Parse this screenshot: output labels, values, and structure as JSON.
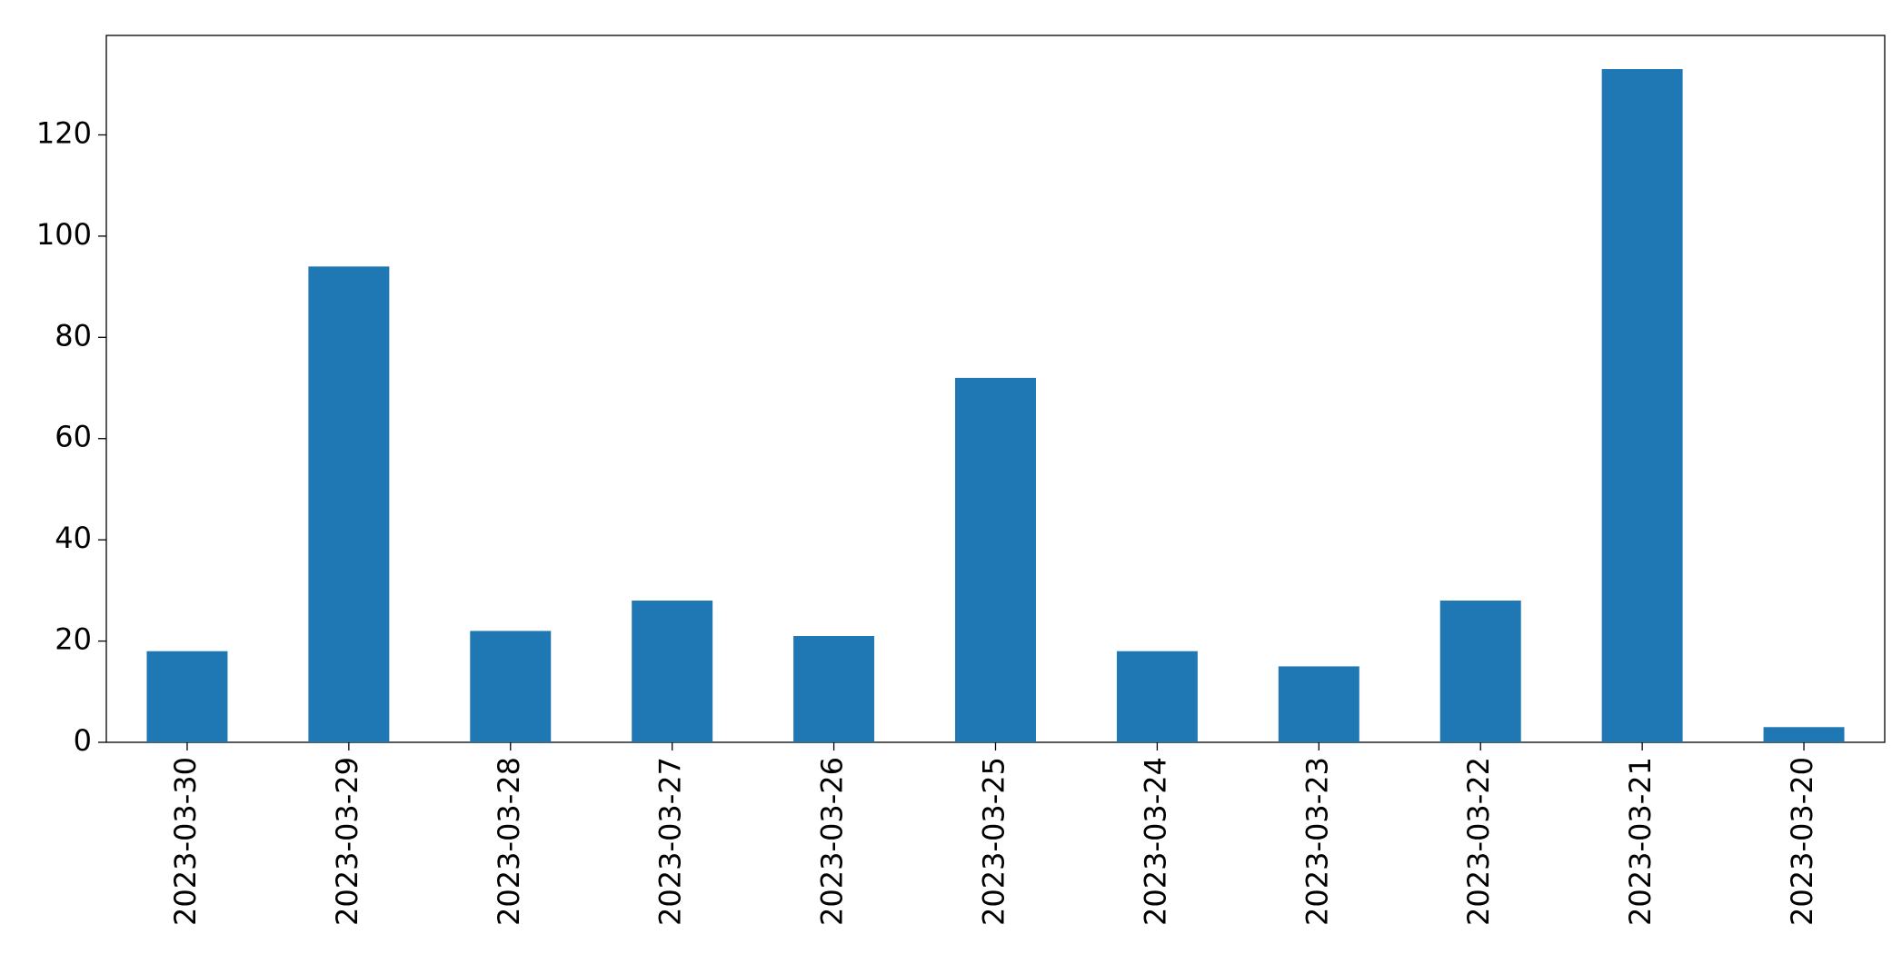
{
  "chart_data": {
    "type": "bar",
    "categories": [
      "2023-03-30",
      "2023-03-29",
      "2023-03-28",
      "2023-03-27",
      "2023-03-26",
      "2023-03-25",
      "2023-03-24",
      "2023-03-23",
      "2023-03-22",
      "2023-03-21",
      "2023-03-20"
    ],
    "values": [
      18,
      94,
      22,
      28,
      21,
      72,
      18,
      15,
      28,
      133,
      3
    ],
    "color": "#1f77b4",
    "ylim": [
      0,
      139.65
    ],
    "yticks": [
      0,
      20,
      40,
      60,
      80,
      100,
      120
    ],
    "grid": false
  }
}
